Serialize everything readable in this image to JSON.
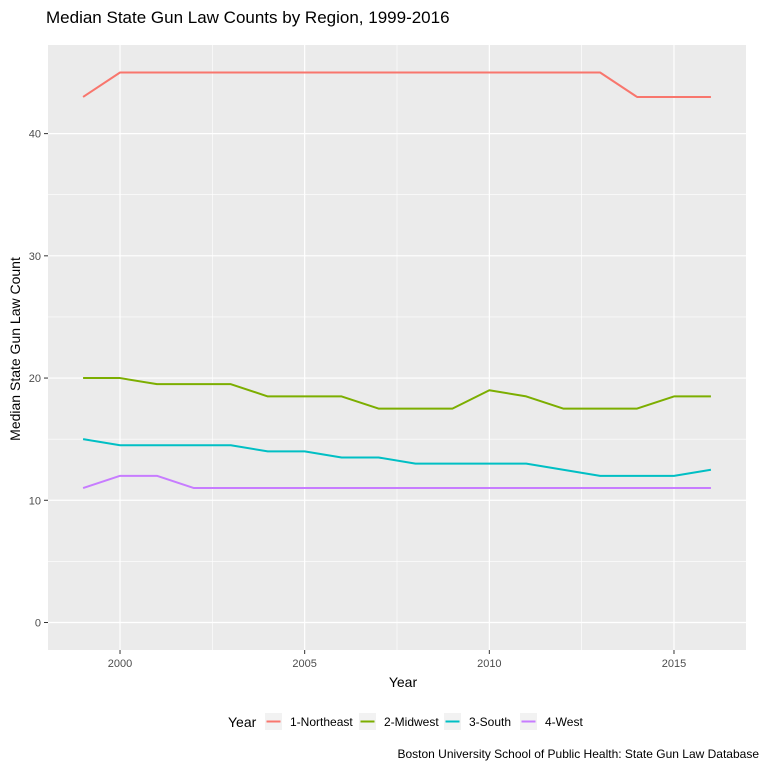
{
  "chart_data": {
    "type": "line",
    "title": "Median State Gun Law Counts by Region, 1999-2016",
    "xlabel": "Year",
    "ylabel": "Median State Gun Law Count",
    "caption": "Boston University School of Public Health: State Gun Law Database",
    "legend_title": "Year",
    "legend_position": "bottom",
    "grid": true,
    "xlim": [
      1998.05,
      2016.95
    ],
    "ylim": [
      -2.25,
      47.25
    ],
    "x_ticks": [
      2000,
      2005,
      2010,
      2015
    ],
    "x_tick_labels": [
      "2000",
      "2005",
      "2010",
      "2015"
    ],
    "y_ticks": [
      0,
      10,
      20,
      30,
      40
    ],
    "y_tick_labels": [
      "0",
      "10",
      "20",
      "30",
      "40"
    ],
    "x": [
      1999,
      2000,
      2001,
      2002,
      2003,
      2004,
      2005,
      2006,
      2007,
      2008,
      2009,
      2010,
      2011,
      2012,
      2013,
      2014,
      2015,
      2016
    ],
    "series": [
      {
        "name": "1-Northeast",
        "color": "#F8766D",
        "values": [
          43,
          45,
          45,
          45,
          45,
          45,
          45,
          45,
          45,
          45,
          45,
          45,
          45,
          45,
          45,
          43,
          43,
          43
        ]
      },
      {
        "name": "2-Midwest",
        "color": "#7CAE00",
        "values": [
          20,
          20,
          19.5,
          19.5,
          19.5,
          18.5,
          18.5,
          18.5,
          17.5,
          17.5,
          17.5,
          19,
          18.5,
          17.5,
          17.5,
          17.5,
          18.5,
          18.5
        ]
      },
      {
        "name": "3-South",
        "color": "#00BFC4",
        "values": [
          15,
          14.5,
          14.5,
          14.5,
          14.5,
          14,
          14,
          13.5,
          13.5,
          13,
          13,
          13,
          13,
          12.5,
          12,
          12,
          12,
          12.5
        ]
      },
      {
        "name": "4-West",
        "color": "#C77CFF",
        "values": [
          11,
          12,
          12,
          11,
          11,
          11,
          11,
          11,
          11,
          11,
          11,
          11,
          11,
          11,
          11,
          11,
          11,
          11
        ]
      }
    ]
  }
}
